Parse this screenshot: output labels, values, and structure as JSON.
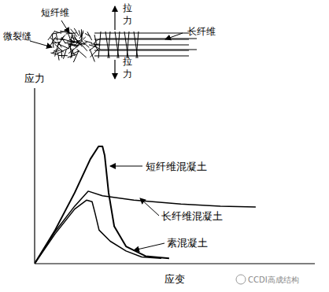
{
  "chart_data": {
    "type": "line",
    "x_label": "应变",
    "y_label": "应力",
    "xlim": [
      0,
      100
    ],
    "ylim": [
      0,
      100
    ],
    "tick_labels": false,
    "grid": false,
    "annotations": [
      "微裂缝",
      "短纤维",
      "拉力",
      "长纤维",
      "拉力"
    ],
    "watermark": "CCDI高成结构",
    "series": [
      {
        "name": "短纤维混凝土",
        "color": "#000000",
        "x": [
          0,
          7.3,
          14.3,
          19.9,
          22.8,
          24.2,
          25.0,
          26.4,
          28.4,
          32.6,
          39.6,
          48.0
        ],
        "values": [
          0,
          19.1,
          40.4,
          59.6,
          66.8,
          66.8,
          61.7,
          40.4,
          21.3,
          9.8,
          4.3,
          3.0
        ]
      },
      {
        "name": "长纤维混凝土",
        "color": "#000000",
        "x": [
          0,
          7.3,
          14.3,
          19.1,
          24.2,
          35.4,
          52.2,
          66.3,
          78.9
        ],
        "values": [
          0,
          18.3,
          32.8,
          41.3,
          38.7,
          36.2,
          34.0,
          32.8,
          32.3
        ]
      },
      {
        "name": "素混凝土",
        "color": "#000000",
        "x": [
          0,
          7.3,
          14.3,
          18.5,
          20.5,
          21.6,
          23.0,
          27.0,
          32.6,
          38.2,
          45.2
        ],
        "values": [
          0,
          17.0,
          31.1,
          36.2,
          35.3,
          28.5,
          19.1,
          12.8,
          7.2,
          3.8,
          3.0
        ]
      }
    ]
  }
}
